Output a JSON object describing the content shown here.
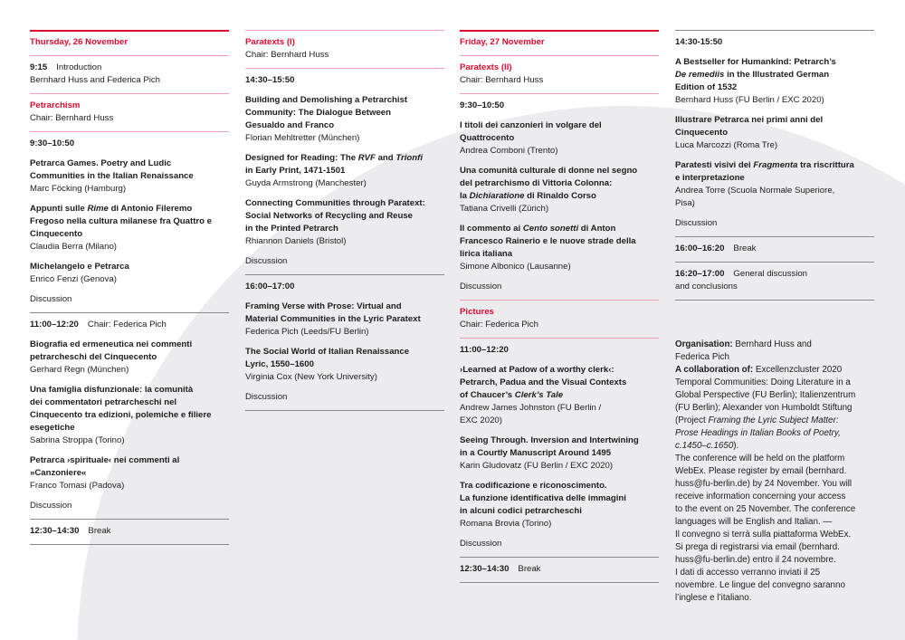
{
  "colors": {
    "accent": "#e30a2e",
    "rule_pink": "#f0a0b0",
    "rule_gray": "#8a8a8a",
    "background_shape": "#ececee"
  },
  "columns": [
    {
      "end_rule": "gray",
      "sections": [
        {
          "rule": "red",
          "items": [
            {
              "type": "day",
              "text": "Thursday, 26 November"
            }
          ]
        },
        {
          "rule": "pink",
          "items": [
            {
              "type": "time",
              "time": "9:15",
              "label": "Introduction",
              "sub": "Bernhard Huss and Federica Pich"
            }
          ]
        },
        {
          "rule": "pink",
          "items": [
            {
              "type": "session",
              "title": "Petrarchism",
              "chair": "Chair: Bernhard Huss"
            }
          ]
        },
        {
          "rule": "pink",
          "items": [
            {
              "type": "time",
              "time": "9:30–10:50"
            },
            {
              "type": "talk",
              "title": [
                [
                  "Petrarca Games. Poetry and Ludic"
                ],
                [
                  "Communities in the Italian Renaissance"
                ]
              ],
              "speaker": [
                "Marc Föcking (Hamburg)"
              ]
            },
            {
              "type": "talk",
              "title": [
                [
                  "Appunti sulle ",
                  {
                    "i": "Rime"
                  },
                  " di Antonio Fileremo"
                ],
                [
                  "Fregoso nella cultura milanese fra Quattro e"
                ],
                [
                  "Cinquecento"
                ]
              ],
              "speaker": [
                "Claudia Berra (Milano)"
              ]
            },
            {
              "type": "talk",
              "title": [
                [
                  "Michelangelo e Petrarca"
                ]
              ],
              "speaker": [
                "Enrico Fenzi (Genova)"
              ]
            },
            {
              "type": "discussion",
              "text": "Discussion"
            }
          ]
        },
        {
          "rule": "gray",
          "items": [
            {
              "type": "time",
              "time": "11:00–12:20",
              "label": "Chair: Federica Pich"
            },
            {
              "type": "talk",
              "title": [
                [
                  "Biografia ed ermeneutica nei commenti"
                ],
                [
                  "petrarcheschi del Cinquecento"
                ]
              ],
              "speaker": [
                "Gerhard Regn (München)"
              ]
            },
            {
              "type": "talk",
              "title": [
                [
                  "Una famiglia disfunzionale: la comunità"
                ],
                [
                  "dei commentatori petrarcheschi nel"
                ],
                [
                  "Cinquecento tra edizioni, polemiche e filiere"
                ],
                [
                  "esegetiche"
                ]
              ],
              "speaker": [
                "Sabrina Stroppa (Torino)"
              ]
            },
            {
              "type": "talk",
              "title": [
                [
                  "Petrarca ›spirituale‹ nei commenti al"
                ],
                [
                  "»Canzoniere«"
                ]
              ],
              "speaker": [
                "Franco Tomasi (Padova)"
              ]
            },
            {
              "type": "discussion",
              "text": "Discussion"
            }
          ]
        },
        {
          "rule": "gray",
          "items": [
            {
              "type": "time",
              "time": "12:30–14:30",
              "label": "Break"
            }
          ]
        }
      ]
    },
    {
      "end_rule": "gray",
      "sections": [
        {
          "rule": "pink",
          "items": [
            {
              "type": "session",
              "title": "Paratexts (I)",
              "chair": "Chair: Bernhard Huss"
            }
          ]
        },
        {
          "rule": "pink",
          "items": [
            {
              "type": "time",
              "time": "14:30–15:50"
            },
            {
              "type": "talk",
              "title": [
                [
                  "Building and Demolishing a Petrarchist"
                ],
                [
                  "Community: The Dialogue Between"
                ],
                [
                  "Gesualdo and Franco"
                ]
              ],
              "speaker": [
                "Florian Mehltretter (München)"
              ]
            },
            {
              "type": "talk",
              "title": [
                [
                  "Designed for Reading: The ",
                  {
                    "i": "RVF"
                  },
                  " and ",
                  {
                    "i": "Trionfi"
                  }
                ],
                [
                  "in Early Print, 1471-1501"
                ]
              ],
              "speaker": [
                "Guyda Armstrong (Manchester)"
              ]
            },
            {
              "type": "talk",
              "title": [
                [
                  "Connecting Communities through Paratext:"
                ],
                [
                  "Social Networks of Recycling and Reuse"
                ],
                [
                  "in the Printed Petrarch"
                ]
              ],
              "speaker": [
                "Rhiannon Daniels (Bristol)"
              ]
            },
            {
              "type": "discussion",
              "text": "Discussion"
            }
          ]
        },
        {
          "rule": "gray",
          "items": [
            {
              "type": "time",
              "time": "16:00–17:00"
            },
            {
              "type": "talk",
              "title": [
                [
                  "Framing Verse with Prose: Virtual and"
                ],
                [
                  "Material Communities in the Lyric Paratext"
                ]
              ],
              "speaker": [
                "Federica Pich (Leeds/FU Berlin)"
              ]
            },
            {
              "type": "talk",
              "title": [
                [
                  "The Social World of Italian Renaissance"
                ],
                [
                  "Lyric, 1550–1600"
                ]
              ],
              "speaker": [
                "Virginia Cox (New York University)"
              ]
            },
            {
              "type": "discussion",
              "text": "Discussion"
            }
          ]
        }
      ]
    },
    {
      "end_rule": "gray",
      "sections": [
        {
          "rule": "red",
          "items": [
            {
              "type": "day",
              "text": "Friday, 27 November"
            }
          ]
        },
        {
          "rule": "pink",
          "items": [
            {
              "type": "session",
              "title": "Paratexts (II)",
              "chair": "Chair: Bernhard Huss"
            }
          ]
        },
        {
          "rule": "pink",
          "items": [
            {
              "type": "time",
              "time": "9:30–10:50"
            },
            {
              "type": "talk",
              "title": [
                [
                  "I titoli dei canzonieri in volgare del"
                ],
                [
                  "Quattrocento"
                ]
              ],
              "speaker": [
                "Andrea Comboni (Trento)"
              ]
            },
            {
              "type": "talk",
              "title": [
                [
                  "Una comunità culturale di donne nel segno"
                ],
                [
                  "del petrarchismo di Vittoria Colonna:"
                ],
                [
                  "la ",
                  {
                    "i": "Dichiaratione"
                  },
                  " di Rinaldo Corso"
                ]
              ],
              "speaker": [
                "Tatiana Crivelli (Zürich)"
              ]
            },
            {
              "type": "talk",
              "title": [
                [
                  "Il commento ai ",
                  {
                    "i": "Cento sonetti"
                  },
                  " di Anton"
                ],
                [
                  "Francesco Rainerio e le nuove strade della"
                ],
                [
                  "lirica italiana"
                ]
              ],
              "speaker": [
                "Simone Albonico (Lausanne)"
              ]
            },
            {
              "type": "discussion",
              "text": "Discussion"
            }
          ]
        },
        {
          "rule": "pink",
          "items": [
            {
              "type": "session",
              "title": "Pictures",
              "chair": "Chair: Federica Pich"
            }
          ]
        },
        {
          "rule": "pink",
          "items": [
            {
              "type": "time",
              "time": "11:00–12:20"
            },
            {
              "type": "talk",
              "title": [
                [
                  "›Learned at Padow of a worthy clerk‹:"
                ],
                [
                  "Petrarch, Padua and the Visual Contexts"
                ],
                [
                  "of Chaucer’s ",
                  {
                    "i": "Clerk’s Tale"
                  }
                ]
              ],
              "speaker": [
                "Andrew James Johnston (FU Berlin /",
                "EXC 2020)"
              ]
            },
            {
              "type": "talk",
              "title": [
                [
                  "Seeing Through. Inversion and Intertwining"
                ],
                [
                  "in a Courtly Manuscript Around 1495"
                ]
              ],
              "speaker": [
                "Karin Gludovatz (FU Berlin / EXC 2020)"
              ]
            },
            {
              "type": "talk",
              "title": [
                [
                  "Tra codificazione e riconoscimento."
                ],
                [
                  "La funzione identificativa delle immagini"
                ],
                [
                  "in alcuni codici petrarcheschi"
                ]
              ],
              "speaker": [
                "Romana Brovia (Torino)"
              ]
            },
            {
              "type": "discussion",
              "text": "Discussion"
            }
          ]
        },
        {
          "rule": "gray",
          "items": [
            {
              "type": "time",
              "time": "12:30–14:30",
              "label": "Break"
            }
          ]
        }
      ]
    },
    {
      "end_rule": "gray",
      "sections": [
        {
          "rule": "gray",
          "items": [
            {
              "type": "time",
              "time": "14:30-15:50"
            },
            {
              "type": "talk",
              "title": [
                [
                  "A Bestseller for Humankind: Petrarch’s"
                ],
                [
                  {
                    "i": "De remediis"
                  },
                  " in the Illustrated German"
                ],
                [
                  "Edition of 1532"
                ]
              ],
              "speaker": [
                "Bernhard Huss (FU Berlin / EXC 2020)"
              ]
            },
            {
              "type": "talk",
              "title": [
                [
                  "Illustrare Petrarca nei primi anni del"
                ],
                [
                  "Cinquecento"
                ]
              ],
              "speaker": [
                "Luca Marcozzi (Roma Tre)"
              ]
            },
            {
              "type": "talk",
              "title": [
                [
                  "Paratesti visivi dei ",
                  {
                    "i": "Fragmenta"
                  },
                  " tra riscrittura"
                ],
                [
                  "e interpretazione"
                ]
              ],
              "speaker": [
                "Andrea Torre (Scuola Normale Superiore,",
                "Pisa)"
              ]
            },
            {
              "type": "discussion",
              "text": "Discussion"
            }
          ]
        },
        {
          "rule": "gray",
          "items": [
            {
              "type": "time",
              "time": "16:00–16:20",
              "label": "Break"
            }
          ]
        },
        {
          "rule": "gray",
          "items": [
            {
              "type": "time",
              "time": "16:20–17:00",
              "label": "General discussion",
              "sub": "and conclusions"
            }
          ]
        }
      ],
      "info": [
        [
          {
            "b": "Organisation:"
          },
          " Bernhard Huss and"
        ],
        [
          "Federica Pich"
        ],
        [
          {
            "b": "A collaboration of:"
          },
          " Excellenzcluster 2020"
        ],
        [
          "Temporal Communities: Doing Literature in a"
        ],
        [
          "Global Perspective (FU Berlin); Italienzentrum"
        ],
        [
          "(FU Berlin); Alexander von Humboldt Stiftung"
        ],
        [
          "(Project ",
          {
            "i": "Framing the Lyric Subject Matter:"
          }
        ],
        [
          {
            "i": "Prose Headings in Italian Books of Poetry,"
          }
        ],
        [
          {
            "i": "c.1450–c.1650"
          },
          ")."
        ],
        [
          "The conference will be held on the platform"
        ],
        [
          "WebEx. Please register by email (bernhard."
        ],
        [
          "huss@fu-berlin.de) by 24 November. You will"
        ],
        [
          "receive information concerning your access"
        ],
        [
          "to the event on 25 November. The conference"
        ],
        [
          "languages will be English and Italian. —"
        ],
        [
          "Il convegno si terrà sulla piattaforma WebEx."
        ],
        [
          "Si prega di registrarsi via email (bernhard."
        ],
        [
          "huss@fu-berlin.de) entro il 24 novembre."
        ],
        [
          "I dati di accesso verranno inviati il  25"
        ],
        [
          "novembre. Le lingue del convegno saranno"
        ],
        [
          "l’inglese e l’italiano."
        ]
      ]
    }
  ]
}
